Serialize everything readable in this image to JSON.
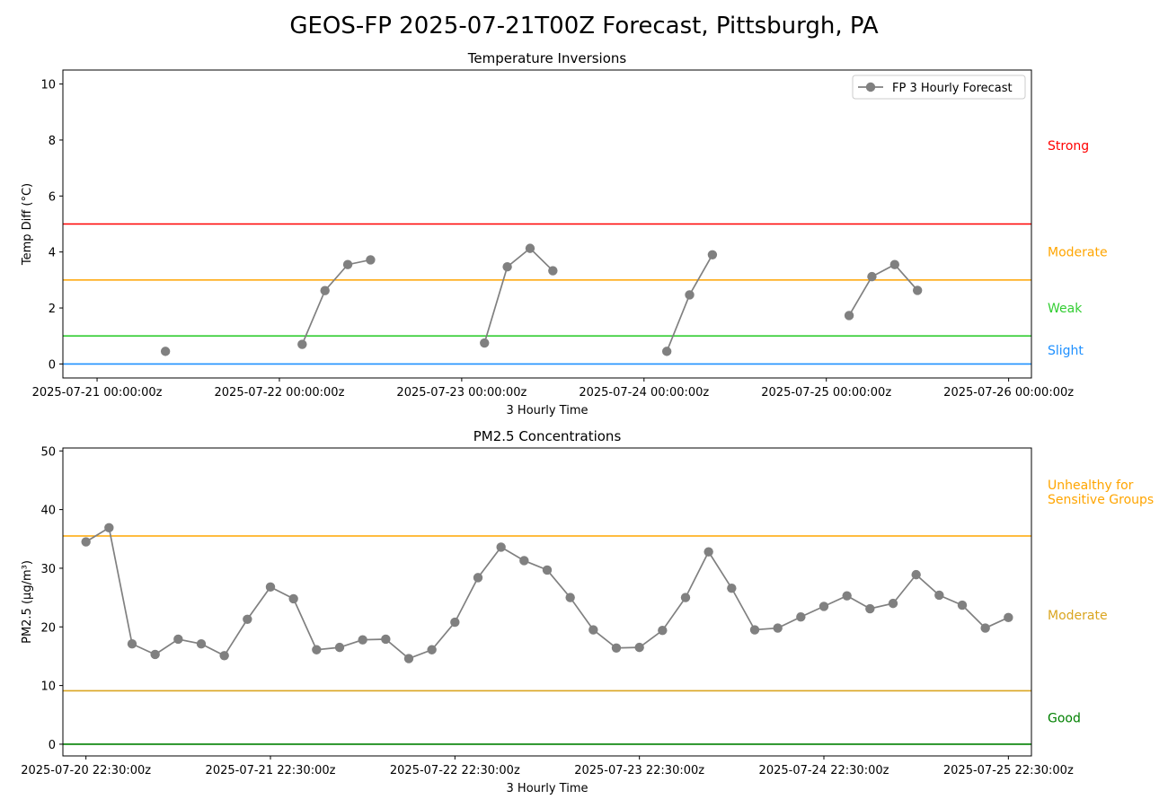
{
  "figure_title": "GEOS-FP 2025-07-21T00Z Forecast, Pittsburgh, PA",
  "chart_data": [
    {
      "type": "line",
      "title": "Temperature Inversions",
      "xlabel": "3 Hourly Time",
      "ylabel": "Temp Diff (°C)",
      "ylim": [
        -0.5,
        10.5
      ],
      "yticks": [
        0,
        2,
        4,
        6,
        8,
        10
      ],
      "x_tick_labels": [
        "2025-07-21 00:00:00z",
        "2025-07-22 00:00:00z",
        "2025-07-23 00:00:00z",
        "2025-07-24 00:00:00z",
        "2025-07-25 00:00:00z",
        "2025-07-26 00:00:00z"
      ],
      "x_tick_hours": [
        0,
        24,
        48,
        72,
        96,
        120
      ],
      "xlim_hours": [
        -4.5,
        123
      ],
      "grid": false,
      "legend": {
        "position": "top-right",
        "entries": [
          "FP 3 Hourly Forecast"
        ]
      },
      "series": [
        {
          "name": "FP 3 Hourly Forecast",
          "color": "#808080",
          "x_hours": [
            0,
            3,
            6,
            9,
            12,
            15,
            18,
            21,
            24,
            27,
            30,
            33,
            36,
            39,
            42,
            45,
            48,
            51,
            54,
            57,
            60,
            63,
            66,
            69,
            72,
            75,
            78,
            81,
            84,
            87,
            90,
            93,
            96,
            99,
            102,
            105,
            108,
            111,
            114,
            117,
            120
          ],
          "values": [
            null,
            null,
            null,
            0.45,
            null,
            null,
            null,
            null,
            null,
            0.7,
            2.62,
            3.55,
            3.72,
            null,
            null,
            null,
            null,
            0.75,
            3.47,
            4.13,
            3.33,
            null,
            null,
            null,
            null,
            0.45,
            2.47,
            3.9,
            null,
            null,
            null,
            null,
            null,
            1.73,
            3.12,
            3.55,
            2.63,
            null,
            null,
            null,
            null
          ]
        }
      ],
      "thresholds": [
        {
          "label": "Strong",
          "value": 5,
          "color": "#ff0000",
          "label_value": 7.8
        },
        {
          "label": "Moderate",
          "value": 3,
          "color": "#ffa500",
          "label_value": 4.0
        },
        {
          "label": "Weak",
          "value": 1,
          "color": "#32cd32",
          "label_value": 2.0
        },
        {
          "label": "Slight",
          "value": 0,
          "color": "#1e90ff",
          "label_value": 0.5
        }
      ]
    },
    {
      "type": "line",
      "title": "PM2.5 Concentrations",
      "xlabel": "3 Hourly Time",
      "ylabel": "PM2.5 (μg/m³)",
      "ylim": [
        -2,
        50.5
      ],
      "yticks": [
        0,
        10,
        20,
        30,
        40,
        50
      ],
      "x_tick_labels": [
        "2025-07-20 22:30:00z",
        "2025-07-21 22:30:00z",
        "2025-07-22 22:30:00z",
        "2025-07-23 22:30:00z",
        "2025-07-24 22:30:00z",
        "2025-07-25 22:30:00z"
      ],
      "x_tick_hours": [
        0,
        24,
        48,
        72,
        96,
        120
      ],
      "xlim_hours": [
        -3,
        123
      ],
      "grid": false,
      "series": [
        {
          "name": "",
          "color": "#808080",
          "x_hours": [
            0,
            3,
            6,
            9,
            12,
            15,
            18,
            21,
            24,
            27,
            30,
            33,
            36,
            39,
            42,
            45,
            48,
            51,
            54,
            57,
            60,
            63,
            66,
            69,
            72,
            75,
            78,
            81,
            84,
            87,
            90,
            93,
            96,
            99,
            102,
            105,
            108,
            111,
            114,
            117,
            120
          ],
          "values": [
            34.5,
            36.9,
            17.1,
            15.3,
            17.9,
            17.1,
            15.1,
            21.3,
            26.8,
            24.8,
            16.1,
            16.5,
            17.8,
            17.9,
            14.6,
            16.1,
            20.8,
            28.4,
            33.6,
            31.3,
            29.7,
            25.0,
            19.5,
            16.4,
            16.5,
            19.4,
            25.0,
            32.8,
            26.6,
            19.5,
            19.8,
            21.7,
            23.5,
            25.3,
            23.1,
            24.0,
            28.9,
            25.4,
            23.7,
            19.8,
            21.6
          ]
        }
      ],
      "thresholds": [
        {
          "label": "Unhealthy for\nSensitive Groups",
          "value": 35.5,
          "color": "#ffa500",
          "label_value": 43
        },
        {
          "label": "Moderate",
          "value": 9.1,
          "color": "#daa520",
          "label_value": 22
        },
        {
          "label": "Good",
          "value": 0,
          "color": "#008000",
          "label_value": 4.5
        }
      ]
    }
  ]
}
